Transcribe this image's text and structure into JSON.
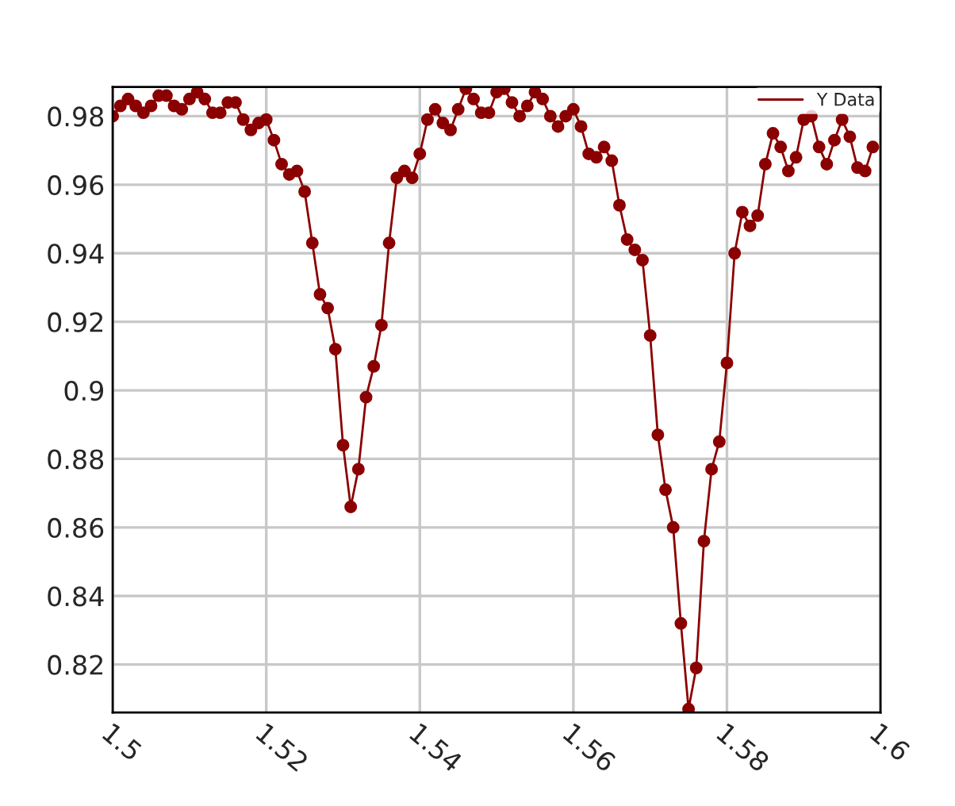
{
  "chart_data": {
    "type": "line",
    "marker": "circle",
    "grid": true,
    "legend": "top right",
    "xlim": [
      1.5,
      1.6
    ],
    "xticks": [
      1.5,
      1.52,
      1.54,
      1.56,
      1.58,
      1.6
    ],
    "ylim": [
      0.806,
      0.9885
    ],
    "yticks": [
      0.82,
      0.84,
      0.86,
      0.88,
      {
        "value": 0.9,
        "label": "0.9"
      },
      0.92,
      0.94,
      0.96,
      0.98
    ],
    "x": [
      1.5,
      1.501,
      1.502,
      1.503,
      1.504,
      1.505,
      1.506,
      1.507,
      1.508,
      1.509,
      1.51,
      1.511,
      1.512,
      1.513,
      1.514,
      1.515,
      1.516,
      1.517,
      1.518,
      1.519,
      1.52,
      1.521,
      1.522,
      1.523,
      1.524,
      1.525,
      1.526,
      1.527,
      1.528,
      1.529,
      1.53,
      1.531,
      1.532,
      1.533,
      1.534,
      1.535,
      1.536,
      1.537,
      1.538,
      1.539,
      1.54,
      1.541,
      1.542,
      1.543,
      1.544,
      1.545,
      1.546,
      1.547,
      1.548,
      1.549,
      1.55,
      1.551,
      1.552,
      1.553,
      1.554,
      1.555,
      1.556,
      1.557,
      1.558,
      1.559,
      1.56,
      1.561,
      1.562,
      1.563,
      1.564,
      1.565,
      1.566,
      1.567,
      1.568,
      1.569,
      1.57,
      1.571,
      1.572,
      1.573,
      1.574,
      1.575,
      1.576,
      1.577,
      1.578,
      1.579,
      1.58,
      1.581,
      1.582,
      1.583,
      1.584,
      1.585,
      1.586,
      1.587,
      1.588,
      1.589,
      1.59,
      1.591,
      1.592,
      1.593,
      1.594,
      1.595,
      1.596,
      1.597,
      1.598,
      1.599
    ],
    "series": [
      {
        "name": "Y Data",
        "color": "#8b0000",
        "values": [
          0.98,
          0.983,
          0.985,
          0.983,
          0.981,
          0.983,
          0.986,
          0.986,
          0.983,
          0.982,
          0.985,
          0.987,
          0.985,
          0.981,
          0.981,
          0.984,
          0.984,
          0.979,
          0.976,
          0.978,
          0.979,
          0.973,
          0.966,
          0.963,
          0.964,
          0.958,
          0.943,
          0.928,
          0.924,
          0.912,
          0.884,
          0.866,
          0.877,
          0.898,
          0.907,
          0.919,
          0.943,
          0.962,
          0.964,
          0.962,
          0.969,
          0.979,
          0.982,
          0.978,
          0.976,
          0.982,
          0.988,
          0.985,
          0.981,
          0.981,
          0.987,
          0.988,
          0.984,
          0.98,
          0.983,
          0.987,
          0.985,
          0.98,
          0.977,
          0.98,
          0.982,
          0.977,
          0.969,
          0.968,
          0.971,
          0.967,
          0.954,
          0.944,
          0.941,
          0.938,
          0.916,
          0.887,
          0.871,
          0.86,
          0.832,
          0.807,
          0.819,
          0.856,
          0.877,
          0.885,
          0.908,
          0.94,
          0.952,
          0.948,
          0.951,
          0.966,
          0.975,
          0.971,
          0.964,
          0.968,
          0.979,
          0.98,
          0.971,
          0.966,
          0.973,
          0.979,
          0.974,
          0.965,
          0.964,
          0.971
        ]
      }
    ]
  }
}
